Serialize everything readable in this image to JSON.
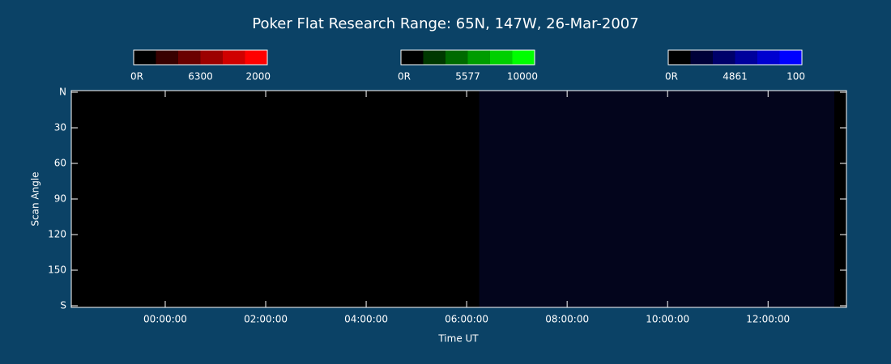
{
  "chart_data": {
    "type": "heatmap",
    "title": "Poker Flat Research Range: 65N, 147W, 26-Mar-2007",
    "xlabel": "Time UT",
    "ylabel": "Scan Angle",
    "xlim": [
      -1.87,
      13.56
    ],
    "xticks": [
      {
        "value": 0,
        "label": "00:00:00"
      },
      {
        "value": 2,
        "label": "02:00:00"
      },
      {
        "value": 4,
        "label": "04:00:00"
      },
      {
        "value": 6,
        "label": "06:00:00"
      },
      {
        "value": 8,
        "label": "08:00:00"
      },
      {
        "value": 10,
        "label": "10:00:00"
      },
      {
        "value": 12,
        "label": "12:00:00"
      }
    ],
    "ylim": [
      0,
      180
    ],
    "y_inverted": true,
    "yticks": [
      {
        "value": 0,
        "label": "N"
      },
      30,
      60,
      90,
      120,
      150,
      {
        "value": 180,
        "label": "S"
      }
    ],
    "colorbars": [
      {
        "min_label": "0R",
        "name": "6300",
        "max": 2000,
        "colors": [
          "#000000",
          "#380000",
          "#6a0000",
          "#9c0000",
          "#d00000",
          "#ff0000"
        ]
      },
      {
        "min_label": "0R",
        "name": "5577",
        "max": 10000,
        "colors": [
          "#000000",
          "#003800",
          "#006a00",
          "#009c00",
          "#00d000",
          "#00ff00"
        ]
      },
      {
        "min_label": "0R",
        "name": "4861",
        "max": 100,
        "colors": [
          "#000000",
          "#000038",
          "#00006a",
          "#00009c",
          "#0000d0",
          "#0000ff"
        ]
      }
    ]
  }
}
